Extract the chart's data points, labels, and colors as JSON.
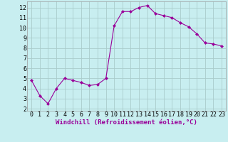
{
  "x": [
    0,
    1,
    2,
    3,
    4,
    5,
    6,
    7,
    8,
    9,
    10,
    11,
    12,
    13,
    14,
    15,
    16,
    17,
    18,
    19,
    20,
    21,
    22,
    23
  ],
  "y": [
    4.8,
    3.3,
    2.5,
    4.0,
    5.0,
    4.8,
    4.6,
    4.3,
    4.4,
    5.0,
    10.2,
    11.6,
    11.6,
    12.0,
    12.2,
    11.4,
    11.2,
    11.0,
    10.5,
    10.1,
    9.4,
    8.5,
    8.4,
    8.2
  ],
  "line_color": "#990099",
  "marker": "D",
  "marker_size": 2.0,
  "bg_color": "#c8eef0",
  "grid_color": "#aacccc",
  "xlabel": "Windchill (Refroidissement éolien,°C)",
  "xlim": [
    -0.5,
    23.5
  ],
  "ylim": [
    1.8,
    12.6
  ],
  "yticks": [
    2,
    3,
    4,
    5,
    6,
    7,
    8,
    9,
    10,
    11,
    12
  ],
  "xticks": [
    0,
    1,
    2,
    3,
    4,
    5,
    6,
    7,
    8,
    9,
    10,
    11,
    12,
    13,
    14,
    15,
    16,
    17,
    18,
    19,
    20,
    21,
    22,
    23
  ],
  "xlabel_fontsize": 6.5,
  "tick_fontsize": 6.0,
  "label_color": "#990099",
  "spine_color": "#999999"
}
